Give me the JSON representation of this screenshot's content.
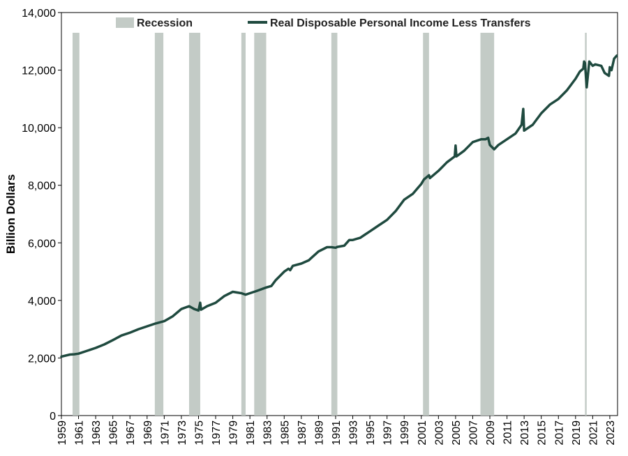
{
  "chart_data": {
    "type": "line",
    "title": "",
    "xlabel": "",
    "ylabel": "Billion Dollars",
    "xlim": [
      1959,
      2023.9
    ],
    "ylim": [
      0,
      14000
    ],
    "yticks": [
      0,
      2000,
      4000,
      6000,
      8000,
      10000,
      12000,
      14000
    ],
    "ytick_labels": [
      "0",
      "2,000",
      "4,000",
      "6,000",
      "8,000",
      "10,000",
      "12,000",
      "14,000"
    ],
    "xtick_labels": [
      "1959",
      "1961",
      "1963",
      "1965",
      "1967",
      "1969",
      "1971",
      "1973",
      "1975",
      "1977",
      "1979",
      "1981",
      "1983",
      "1985",
      "1987",
      "1989",
      "1991",
      "1993",
      "1995",
      "1997",
      "1999",
      "2001",
      "2003",
      "2005",
      "2007",
      "2009",
      "2011",
      "2013",
      "2015",
      "2017",
      "2019",
      "2021",
      "2023"
    ],
    "grid": false,
    "legend_position": "top",
    "colors": {
      "line": "#1f4a3f",
      "recession": "#c3cbc6"
    },
    "recessions": [
      [
        1960.3,
        1961.1
      ],
      [
        1969.9,
        1970.9
      ],
      [
        1973.9,
        1975.2
      ],
      [
        1980.0,
        1980.5
      ],
      [
        1981.5,
        1982.9
      ],
      [
        1990.5,
        1991.2
      ],
      [
        2001.2,
        2001.9
      ],
      [
        2007.9,
        2009.5
      ],
      [
        2020.1,
        2020.3
      ]
    ],
    "series": [
      {
        "name": "Real Disposable Personal Income Less Transfers",
        "type": "line",
        "x": [
          1959,
          1960,
          1960.5,
          1961,
          1962,
          1963,
          1964,
          1965,
          1966,
          1967,
          1968,
          1969,
          1970,
          1971,
          1972,
          1973,
          1973.9,
          1974.5,
          1975,
          1975.2,
          1975.3,
          1976,
          1977,
          1978,
          1979,
          1980,
          1980.5,
          1981,
          1981.5,
          1982,
          1982.9,
          1983.5,
          1984,
          1985,
          1985.5,
          1985.6,
          1985.7,
          1986,
          1987,
          1987.9,
          1988,
          1989,
          1990,
          1990.5,
          1991,
          1991.2,
          1992,
          1992.6,
          1993,
          1993.9,
          1994,
          1995,
          1996,
          1997,
          1998,
          1999,
          2000,
          2001,
          2001.3,
          2001.9,
          2002,
          2003,
          2004,
          2004.9,
          2005,
          2005.1,
          2006,
          2007,
          2008,
          2008.5,
          2008.8,
          2009,
          2009.5,
          2010,
          2011,
          2012,
          2012.7,
          2012.9,
          2013,
          2014,
          2015,
          2016,
          2017,
          2018,
          2019,
          2019.5,
          2019.9,
          2020,
          2020.1,
          2020.3,
          2020.6,
          2021,
          2021.3,
          2022,
          2022.4,
          2022.9,
          2023,
          2023.2,
          2023.5,
          2023.8
        ],
        "y": [
          2050,
          2120,
          2130,
          2150,
          2250,
          2350,
          2470,
          2620,
          2780,
          2880,
          3000,
          3100,
          3200,
          3280,
          3450,
          3700,
          3800,
          3700,
          3650,
          3920,
          3680,
          3800,
          3920,
          4150,
          4300,
          4250,
          4200,
          4250,
          4300,
          4350,
          4450,
          4500,
          4700,
          5000,
          5100,
          5080,
          5050,
          5200,
          5280,
          5400,
          5430,
          5700,
          5850,
          5850,
          5830,
          5860,
          5900,
          6100,
          6100,
          6180,
          6200,
          6400,
          6600,
          6800,
          7100,
          7500,
          7700,
          8050,
          8200,
          8350,
          8250,
          8500,
          8800,
          9000,
          9380,
          9000,
          9200,
          9500,
          9600,
          9600,
          9650,
          9400,
          9250,
          9400,
          9600,
          9800,
          10100,
          10650,
          9900,
          10100,
          10500,
          10800,
          11000,
          11300,
          11700,
          11950,
          12050,
          12300,
          12250,
          11400,
          12300,
          12150,
          12200,
          12150,
          11900,
          11800,
          12100,
          12000,
          12400,
          12500
        ]
      }
    ]
  },
  "legend": {
    "recession_label": "Recession",
    "series_label": "Real Disposable Personal Income Less Transfers"
  }
}
